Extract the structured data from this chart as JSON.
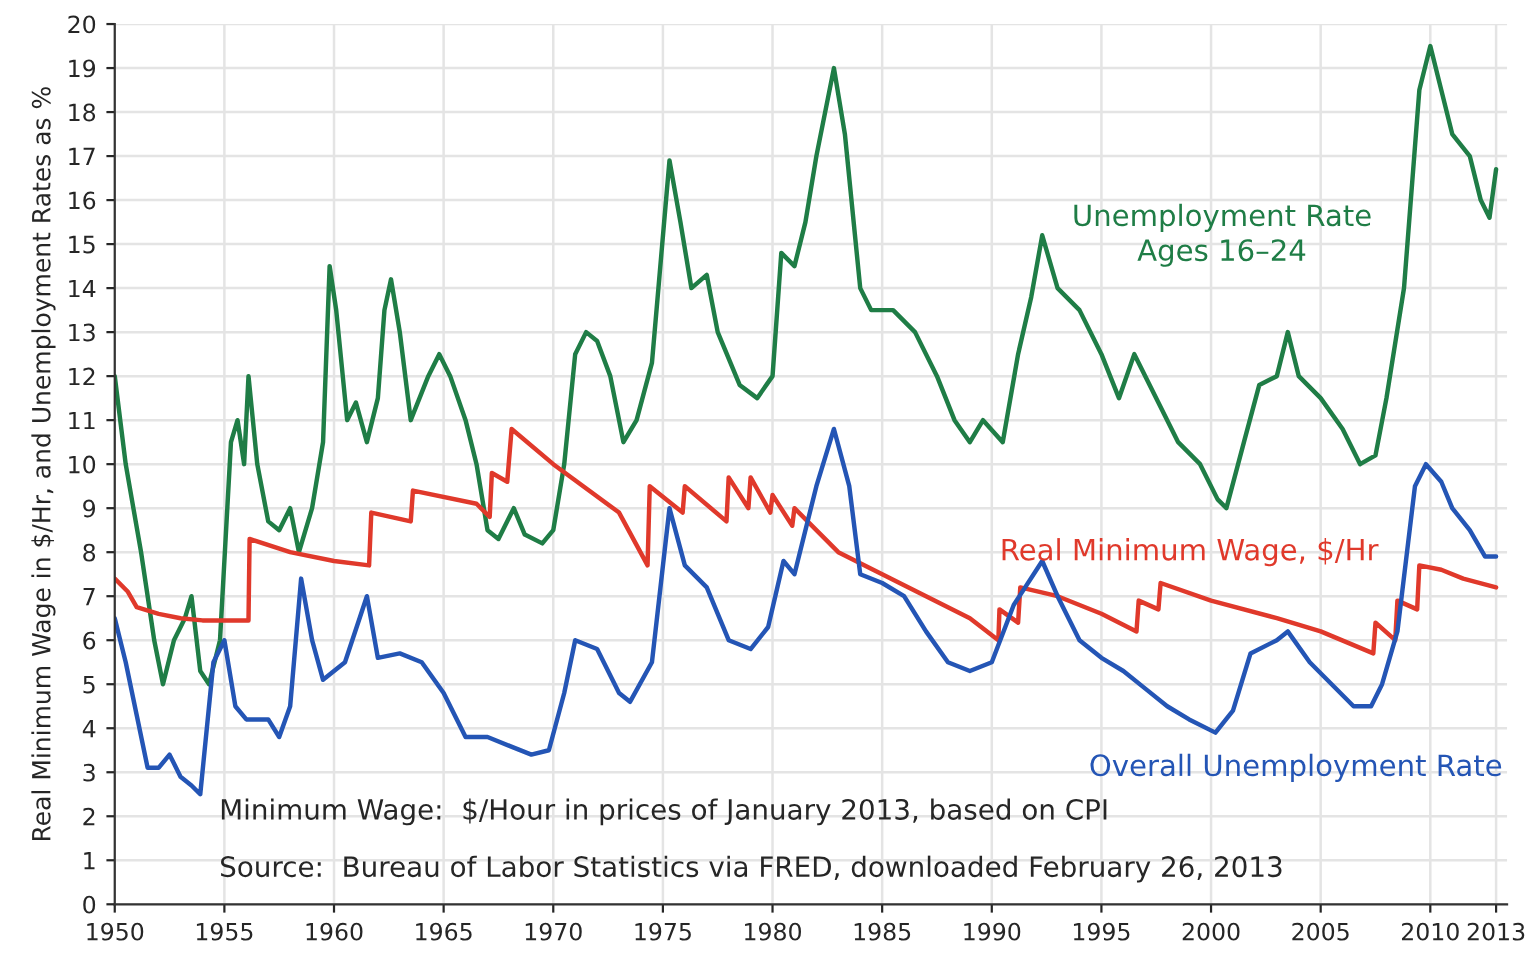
{
  "chart_data": {
    "type": "line",
    "ylabel": "Real Minimum Wage in $/Hr, and Unemployment Rates as %",
    "xlim": [
      1950,
      2013.5
    ],
    "ylim": [
      0,
      20
    ],
    "xticks": [
      1950,
      1955,
      1960,
      1965,
      1970,
      1975,
      1980,
      1985,
      1990,
      1995,
      2000,
      2005,
      2010,
      2013
    ],
    "yticks": [
      0,
      1,
      2,
      3,
      4,
      5,
      6,
      7,
      8,
      9,
      10,
      11,
      12,
      13,
      14,
      15,
      16,
      17,
      18,
      19,
      20
    ],
    "grid": true,
    "legend": false,
    "annotations": [
      "Minimum Wage:  $/Hour in prices of January 2013, based on CPI",
      "Source:  Bureau of Labor Statistics via FRED, downloaded February 26, 2013"
    ],
    "series": [
      {
        "name": "Unemployment Rate\nAges 16–24",
        "color": "#1f7d46",
        "x": [
          1950.0,
          1950.5,
          1951.2,
          1951.8,
          1952.2,
          1952.7,
          1953.2,
          1953.5,
          1953.9,
          1954.3,
          1954.8,
          1955.3,
          1955.6,
          1955.9,
          1956.1,
          1956.5,
          1957.0,
          1957.5,
          1958.0,
          1958.4,
          1959.0,
          1959.5,
          1959.8,
          1960.1,
          1960.6,
          1961.0,
          1961.5,
          1962.0,
          1962.3,
          1962.6,
          1963.0,
          1963.5,
          1964.3,
          1964.8,
          1965.3,
          1966.0,
          1966.5,
          1967.0,
          1967.5,
          1968.2,
          1968.7,
          1969.5,
          1970.0,
          1970.5,
          1971.0,
          1971.5,
          1972.0,
          1972.6,
          1973.2,
          1973.8,
          1974.5,
          1975.3,
          1975.8,
          1976.3,
          1977.0,
          1977.5,
          1978.5,
          1979.3,
          1980.0,
          1980.4,
          1981.0,
          1981.5,
          1982.0,
          1982.8,
          1983.3,
          1984.0,
          1984.5,
          1985.5,
          1986.5,
          1987.5,
          1988.3,
          1989.0,
          1989.6,
          1990.5,
          1991.2,
          1991.8,
          1992.3,
          1993.0,
          1994.0,
          1995.0,
          1995.8,
          1996.5,
          1997.5,
          1998.5,
          1999.5,
          2000.3,
          2000.7,
          2001.5,
          2002.2,
          2003.0,
          2003.5,
          2004.0,
          2005.0,
          2006.0,
          2006.8,
          2007.5,
          2008.0,
          2008.8,
          2009.5,
          2010.0,
          2010.5,
          2011.0,
          2011.8,
          2012.3,
          2012.7,
          2013.0
        ],
        "values": [
          12,
          10,
          8,
          6,
          5,
          6,
          6.5,
          7,
          5.3,
          5,
          6,
          10.5,
          11,
          10,
          12,
          10,
          8.7,
          8.5,
          9,
          8,
          9,
          10.5,
          14.5,
          13.5,
          11,
          11.4,
          10.5,
          11.5,
          13.5,
          14.2,
          13,
          11,
          12,
          12.5,
          12,
          11,
          10,
          8.5,
          8.3,
          9,
          8.4,
          8.2,
          8.5,
          10,
          12.5,
          13,
          12.8,
          12,
          10.5,
          11,
          12.3,
          16.9,
          15.5,
          14,
          14.3,
          13,
          11.8,
          11.5,
          12,
          14.8,
          14.5,
          15.5,
          17,
          19,
          17.5,
          14,
          13.5,
          13.5,
          13,
          12,
          11,
          10.5,
          11,
          10.5,
          12.5,
          13.8,
          15.2,
          14,
          13.5,
          12.5,
          11.5,
          12.5,
          11.5,
          10.5,
          10,
          9.2,
          9,
          10.5,
          11.8,
          12,
          13,
          12,
          11.5,
          10.8,
          10,
          10.2,
          11.5,
          14,
          18.5,
          19.5,
          18.5,
          17.5,
          17,
          16,
          15.6,
          16.7
        ]
      },
      {
        "name": "Real Minimum Wage, $/Hr",
        "color": "#e0392b",
        "x": [
          1950.0,
          1950.6,
          1951.0,
          1952.0,
          1953.0,
          1954.0,
          1955.0,
          1956.1,
          1956.15,
          1958.0,
          1960.0,
          1961.6,
          1961.7,
          1963.5,
          1963.6,
          1966.5,
          1967.1,
          1967.2,
          1967.9,
          1968.1,
          1970.0,
          1973.0,
          1974.3,
          1974.4,
          1975.9,
          1976.0,
          1977.9,
          1978.0,
          1978.9,
          1979.0,
          1979.9,
          1980.0,
          1980.9,
          1981.0,
          1983.0,
          1985.0,
          1987.0,
          1989.0,
          1990.3,
          1990.35,
          1991.2,
          1991.3,
          1993.0,
          1995.0,
          1996.6,
          1996.7,
          1997.6,
          1997.7,
          2000.0,
          2003.0,
          2005.0,
          2007.4,
          2007.5,
          2008.4,
          2008.5,
          2009.4,
          2009.5,
          2010.5,
          2011.5,
          2013.0
        ],
        "values": [
          7.4,
          7.1,
          6.75,
          6.6,
          6.5,
          6.45,
          6.45,
          6.45,
          8.3,
          8.0,
          7.8,
          7.7,
          8.9,
          8.7,
          9.4,
          9.1,
          8.8,
          9.8,
          9.6,
          10.8,
          10.0,
          8.9,
          7.7,
          9.5,
          8.9,
          9.5,
          8.7,
          9.7,
          9.0,
          9.7,
          8.9,
          9.3,
          8.6,
          9.0,
          8.0,
          7.5,
          7.0,
          6.5,
          6.0,
          6.7,
          6.4,
          7.2,
          7.0,
          6.6,
          6.2,
          6.9,
          6.7,
          7.3,
          6.9,
          6.5,
          6.2,
          5.7,
          6.4,
          6.0,
          6.9,
          6.7,
          7.7,
          7.6,
          7.4,
          7.2
        ]
      },
      {
        "name": "Overall Unemployment Rate",
        "color": "#2455b5",
        "x": [
          1950.0,
          1950.5,
          1951.0,
          1951.5,
          1952.0,
          1952.5,
          1953.0,
          1953.5,
          1953.9,
          1954.5,
          1955.0,
          1955.5,
          1956.0,
          1957.0,
          1957.5,
          1958.0,
          1958.5,
          1959.0,
          1959.5,
          1960.0,
          1960.5,
          1961.5,
          1962.0,
          1963.0,
          1964.0,
          1965.0,
          1966.0,
          1967.0,
          1968.0,
          1969.0,
          1969.8,
          1970.5,
          1971.0,
          1972.0,
          1973.0,
          1973.5,
          1974.5,
          1975.3,
          1976.0,
          1977.0,
          1978.0,
          1979.0,
          1979.8,
          1980.5,
          1981.0,
          1982.0,
          1982.8,
          1983.5,
          1984.0,
          1985.0,
          1986.0,
          1987.0,
          1988.0,
          1989.0,
          1990.0,
          1991.0,
          1992.3,
          1993.0,
          1994.0,
          1995.0,
          1996.0,
          1997.0,
          1998.0,
          1999.0,
          2000.2,
          2001.0,
          2001.8,
          2003.0,
          2003.5,
          2004.5,
          2005.5,
          2006.5,
          2007.3,
          2007.8,
          2008.5,
          2009.3,
          2009.8,
          2010.5,
          2011.0,
          2011.8,
          2012.5,
          2013.0
        ],
        "values": [
          6.5,
          5.5,
          4.3,
          3.1,
          3.1,
          3.4,
          2.9,
          2.7,
          2.5,
          5.5,
          6.0,
          4.5,
          4.2,
          4.2,
          3.8,
          4.5,
          7.4,
          6.0,
          5.1,
          5.3,
          5.5,
          7.0,
          5.6,
          5.7,
          5.5,
          4.8,
          3.8,
          3.8,
          3.6,
          3.4,
          3.5,
          4.8,
          6.0,
          5.8,
          4.8,
          4.6,
          5.5,
          9.0,
          7.7,
          7.2,
          6.0,
          5.8,
          6.3,
          7.8,
          7.5,
          9.5,
          10.8,
          9.5,
          7.5,
          7.3,
          7.0,
          6.2,
          5.5,
          5.3,
          5.5,
          6.8,
          7.8,
          7.0,
          6.0,
          5.6,
          5.3,
          4.9,
          4.5,
          4.2,
          3.9,
          4.4,
          5.7,
          6.0,
          6.2,
          5.5,
          5.0,
          4.5,
          4.5,
          5.0,
          6.2,
          9.5,
          10,
          9.6,
          9.0,
          8.5,
          7.9,
          7.9
        ]
      }
    ]
  }
}
